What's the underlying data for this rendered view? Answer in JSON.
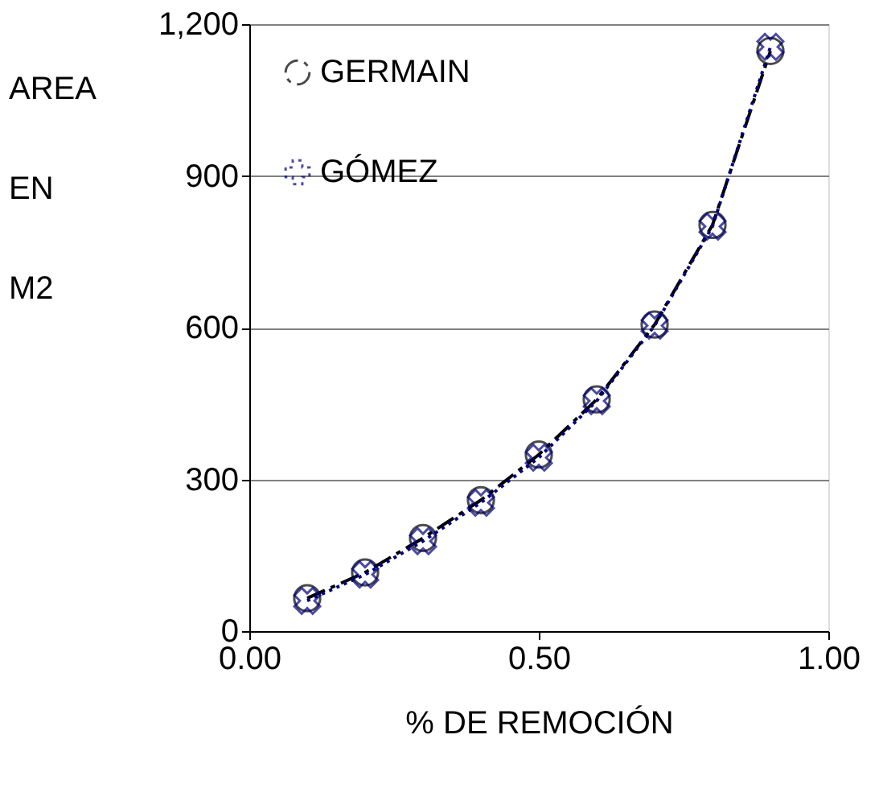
{
  "chart_data": {
    "type": "line",
    "xlabel": "% DE REMOCIÓN",
    "ylabel": "AREA EN M2",
    "x": [
      0.1,
      0.2,
      0.3,
      0.4,
      0.5,
      0.6,
      0.7,
      0.8,
      0.9
    ],
    "series": [
      {
        "name": "GERMAIN",
        "color": "#000000",
        "line_style": "dashed",
        "marker": "circle",
        "values": [
          65,
          116,
          184,
          259,
          349,
          458,
          606,
          803,
          1147
        ]
      },
      {
        "name": "GÓMEZ",
        "color": "#000080",
        "line_style": "dotted",
        "marker": "cross",
        "values": [
          60,
          112,
          178,
          254,
          343,
          455,
          604,
          800,
          1155
        ]
      }
    ],
    "xlim": [
      0,
      1
    ],
    "xticks": [
      {
        "value": 0,
        "label": "0.00"
      },
      {
        "value": 0.5,
        "label": "0.50"
      },
      {
        "value": 1,
        "label": "1.00"
      }
    ],
    "ylim": [
      0,
      1200
    ],
    "yticks": [
      0,
      300,
      600,
      900,
      {
        "value": 1200,
        "label": "1,200"
      }
    ],
    "grid": "y",
    "legend": "top left"
  }
}
